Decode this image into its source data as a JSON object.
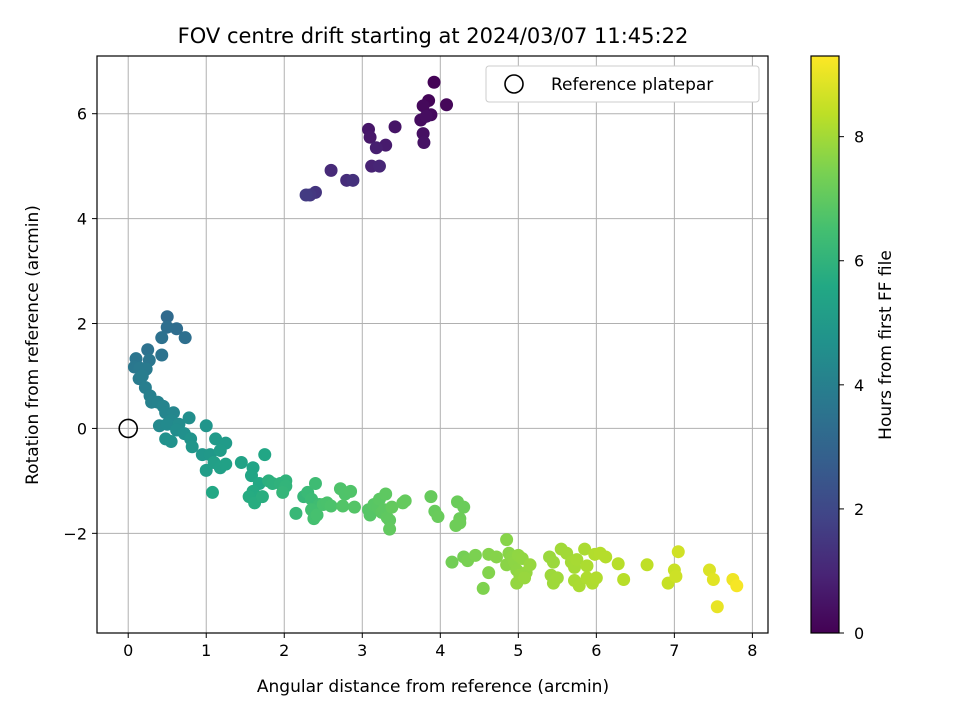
{
  "chart_data": {
    "type": "scatter",
    "title": "FOV centre drift starting at 2024/03/07 11:45:22",
    "xlabel": "Angular distance from reference (arcmin)",
    "ylabel": "Rotation from reference (arcmin)",
    "xlim": [
      -0.4,
      8.2
    ],
    "ylim": [
      -3.9,
      7.1
    ],
    "xticks": [
      0,
      1,
      2,
      3,
      4,
      5,
      6,
      7,
      8
    ],
    "yticks": [
      -2,
      0,
      2,
      4,
      6
    ],
    "grid": true,
    "legend": {
      "placement": "top-right",
      "entries": [
        "Reference platepar"
      ]
    },
    "reference": {
      "x": 0,
      "y": 0
    },
    "colorbar": {
      "label": "Hours from first FF file",
      "range": [
        0,
        9.3
      ],
      "ticks": [
        0,
        2,
        4,
        6,
        8
      ],
      "colormap": "viridis"
    },
    "points": [
      [
        3.92,
        6.6,
        0.05
      ],
      [
        3.85,
        6.25,
        0.1
      ],
      [
        4.08,
        6.17,
        0.15
      ],
      [
        3.78,
        6.15,
        0.2
      ],
      [
        3.88,
        5.98,
        0.25
      ],
      [
        3.75,
        5.88,
        0.3
      ],
      [
        3.82,
        5.95,
        0.35
      ],
      [
        3.78,
        5.62,
        0.4
      ],
      [
        3.79,
        5.45,
        0.45
      ],
      [
        3.42,
        5.75,
        0.5
      ],
      [
        3.08,
        5.7,
        0.55
      ],
      [
        3.1,
        5.55,
        0.6
      ],
      [
        3.3,
        5.4,
        0.7
      ],
      [
        3.18,
        5.35,
        0.8
      ],
      [
        3.12,
        5.0,
        0.9
      ],
      [
        3.22,
        5.0,
        1.0
      ],
      [
        2.6,
        4.92,
        1.1
      ],
      [
        2.8,
        4.73,
        1.2
      ],
      [
        2.88,
        4.73,
        1.3
      ],
      [
        2.4,
        4.5,
        1.4
      ],
      [
        2.33,
        4.45,
        1.5
      ],
      [
        2.28,
        4.45,
        1.6
      ],
      [
        0.5,
        2.13,
        3.2
      ],
      [
        0.62,
        1.9,
        3.3
      ],
      [
        0.5,
        1.93,
        3.35
      ],
      [
        0.73,
        1.73,
        3.4
      ],
      [
        0.43,
        1.73,
        3.45
      ],
      [
        0.25,
        1.5,
        3.5
      ],
      [
        0.43,
        1.4,
        3.55
      ],
      [
        0.1,
        1.33,
        3.6
      ],
      [
        0.27,
        1.3,
        3.65
      ],
      [
        0.08,
        1.17,
        3.7
      ],
      [
        0.15,
        1.15,
        3.75
      ],
      [
        0.23,
        1.13,
        3.8
      ],
      [
        0.14,
        0.95,
        3.85
      ],
      [
        0.18,
        1.0,
        3.9
      ],
      [
        0.22,
        0.78,
        3.95
      ],
      [
        0.28,
        0.62,
        4.0
      ],
      [
        0.3,
        0.5,
        4.05
      ],
      [
        0.38,
        0.5,
        4.1
      ],
      [
        0.45,
        0.42,
        4.15
      ],
      [
        0.48,
        0.3,
        4.2
      ],
      [
        0.58,
        0.3,
        4.25
      ],
      [
        0.55,
        0.15,
        4.3
      ],
      [
        0.4,
        0.05,
        4.35
      ],
      [
        0.5,
        0.08,
        4.4
      ],
      [
        0.65,
        0.08,
        4.45
      ],
      [
        0.62,
        -0.03,
        4.5
      ],
      [
        0.78,
        0.2,
        4.55
      ],
      [
        0.72,
        -0.1,
        4.6
      ],
      [
        0.48,
        -0.2,
        4.65
      ],
      [
        0.55,
        -0.25,
        4.7
      ],
      [
        0.8,
        -0.2,
        4.75
      ],
      [
        1.0,
        0.05,
        4.8
      ],
      [
        0.82,
        -0.35,
        4.85
      ],
      [
        0.95,
        -0.5,
        4.9
      ],
      [
        1.05,
        -0.5,
        4.95
      ],
      [
        1.12,
        -0.2,
        5.0
      ],
      [
        1.25,
        -0.28,
        5.05
      ],
      [
        1.18,
        -0.42,
        5.1
      ],
      [
        1.0,
        -0.8,
        5.15
      ],
      [
        1.1,
        -0.65,
        5.2
      ],
      [
        1.18,
        -0.75,
        5.25
      ],
      [
        1.25,
        -0.68,
        5.3
      ],
      [
        1.45,
        -0.65,
        5.35
      ],
      [
        1.6,
        -0.75,
        5.4
      ],
      [
        1.58,
        -0.9,
        5.45
      ],
      [
        1.75,
        -0.5,
        5.5
      ],
      [
        1.08,
        -1.22,
        5.55
      ],
      [
        1.68,
        -1.05,
        5.6
      ],
      [
        1.6,
        -1.2,
        5.65
      ],
      [
        1.55,
        -1.3,
        5.7
      ],
      [
        1.62,
        -1.42,
        5.75
      ],
      [
        1.72,
        -1.3,
        5.8
      ],
      [
        1.8,
        -1.0,
        5.85
      ],
      [
        1.85,
        -1.05,
        5.9
      ],
      [
        1.95,
        -1.05,
        5.95
      ],
      [
        2.02,
        -1.0,
        6.0
      ],
      [
        2.02,
        -1.1,
        6.05
      ],
      [
        1.98,
        -1.22,
        6.1
      ],
      [
        2.25,
        -1.3,
        6.15
      ],
      [
        2.15,
        -1.62,
        6.2
      ],
      [
        2.3,
        -1.22,
        6.25
      ],
      [
        2.35,
        -1.35,
        6.3
      ],
      [
        2.4,
        -1.05,
        6.35
      ],
      [
        2.45,
        -1.45,
        6.4
      ],
      [
        2.35,
        -1.55,
        6.45
      ],
      [
        2.38,
        -1.72,
        6.5
      ],
      [
        2.42,
        -1.65,
        6.55
      ],
      [
        2.5,
        -1.45,
        6.6
      ],
      [
        2.55,
        -1.42,
        6.62
      ],
      [
        2.6,
        -1.48,
        6.65
      ],
      [
        2.72,
        -1.15,
        6.68
      ],
      [
        2.78,
        -1.25,
        6.7
      ],
      [
        2.85,
        -1.2,
        6.72
      ],
      [
        2.75,
        -1.48,
        6.75
      ],
      [
        2.9,
        -1.5,
        6.78
      ],
      [
        3.08,
        -1.55,
        6.8
      ],
      [
        3.1,
        -1.65,
        6.82
      ],
      [
        3.15,
        -1.45,
        6.85
      ],
      [
        3.2,
        -1.5,
        6.88
      ],
      [
        3.22,
        -1.35,
        6.9
      ],
      [
        3.25,
        -1.6,
        6.92
      ],
      [
        3.28,
        -1.55,
        6.94
      ],
      [
        3.3,
        -1.25,
        6.96
      ],
      [
        3.32,
        -1.7,
        6.98
      ],
      [
        3.35,
        -1.75,
        7.0
      ],
      [
        3.35,
        -1.92,
        7.02
      ],
      [
        3.38,
        -1.5,
        7.04
      ],
      [
        3.52,
        -1.42,
        7.06
      ],
      [
        3.55,
        -1.38,
        7.08
      ],
      [
        3.88,
        -1.3,
        7.1
      ],
      [
        3.93,
        -1.58,
        7.12
      ],
      [
        3.97,
        -1.68,
        7.14
      ],
      [
        4.22,
        -1.4,
        7.16
      ],
      [
        4.3,
        -1.5,
        7.18
      ],
      [
        4.25,
        -1.72,
        7.2
      ],
      [
        4.25,
        -1.8,
        7.22
      ],
      [
        4.2,
        -1.85,
        7.24
      ],
      [
        4.15,
        -2.55,
        7.3
      ],
      [
        4.3,
        -2.45,
        7.35
      ],
      [
        4.35,
        -2.52,
        7.4
      ],
      [
        4.45,
        -2.42,
        7.45
      ],
      [
        4.55,
        -3.05,
        7.5
      ],
      [
        4.62,
        -2.75,
        7.55
      ],
      [
        4.62,
        -2.4,
        7.58
      ],
      [
        4.72,
        -2.45,
        7.6
      ],
      [
        4.85,
        -2.12,
        7.62
      ],
      [
        4.88,
        -2.38,
        7.64
      ],
      [
        4.85,
        -2.6,
        7.66
      ],
      [
        4.92,
        -2.45,
        7.68
      ],
      [
        4.95,
        -2.55,
        7.7
      ],
      [
        4.98,
        -2.7,
        7.72
      ],
      [
        5.0,
        -2.42,
        7.74
      ],
      [
        5.05,
        -2.48,
        7.76
      ],
      [
        5.02,
        -2.8,
        7.78
      ],
      [
        4.98,
        -2.95,
        7.8
      ],
      [
        5.1,
        -2.75,
        7.82
      ],
      [
        5.15,
        -2.6,
        7.84
      ],
      [
        5.08,
        -2.85,
        7.86
      ],
      [
        5.4,
        -2.45,
        7.88
      ],
      [
        5.45,
        -2.55,
        7.9
      ],
      [
        5.42,
        -2.8,
        7.92
      ],
      [
        5.45,
        -2.95,
        7.94
      ],
      [
        5.5,
        -2.85,
        7.96
      ],
      [
        5.55,
        -2.3,
        7.98
      ],
      [
        5.62,
        -2.38,
        8.0
      ],
      [
        5.68,
        -2.55,
        8.02
      ],
      [
        5.72,
        -2.65,
        8.04
      ],
      [
        5.75,
        -2.5,
        8.06
      ],
      [
        5.72,
        -2.9,
        8.08
      ],
      [
        5.78,
        -3.0,
        8.1
      ],
      [
        5.85,
        -2.3,
        8.12
      ],
      [
        5.88,
        -2.62,
        8.14
      ],
      [
        5.88,
        -2.85,
        8.16
      ],
      [
        5.95,
        -2.95,
        8.18
      ],
      [
        6.0,
        -2.85,
        8.2
      ],
      [
        5.98,
        -2.4,
        8.22
      ],
      [
        6.05,
        -2.38,
        8.24
      ],
      [
        6.12,
        -2.45,
        8.26
      ],
      [
        6.28,
        -2.58,
        8.28
      ],
      [
        6.35,
        -2.88,
        8.3
      ],
      [
        6.65,
        -2.6,
        8.4
      ],
      [
        6.92,
        -2.95,
        8.5
      ],
      [
        7.0,
        -2.7,
        8.55
      ],
      [
        7.02,
        -2.82,
        8.6
      ],
      [
        7.05,
        -2.35,
        8.65
      ],
      [
        7.45,
        -2.7,
        8.8
      ],
      [
        7.5,
        -2.88,
        8.9
      ],
      [
        7.55,
        -3.4,
        9.0
      ],
      [
        7.75,
        -2.88,
        9.1
      ],
      [
        7.8,
        -3.0,
        9.2
      ]
    ]
  }
}
